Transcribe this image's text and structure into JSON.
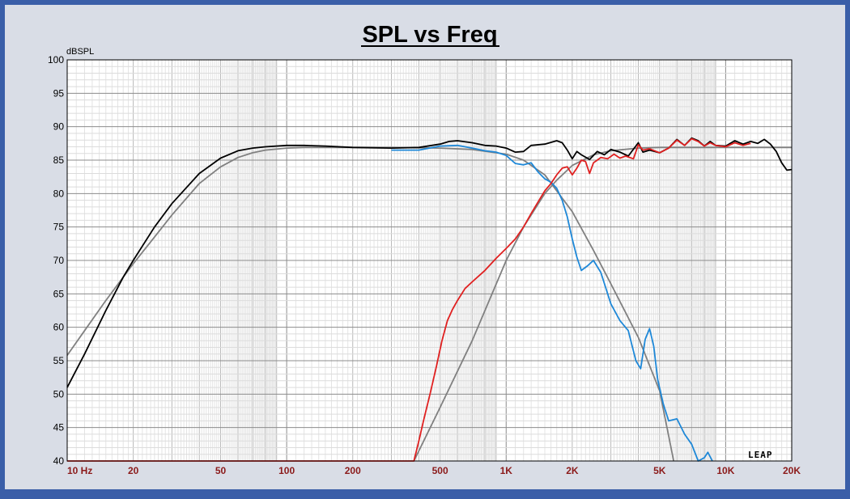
{
  "chart_data": {
    "type": "line",
    "title": "SPL vs Freq",
    "ylabel": "dBSPL",
    "xlabel": "",
    "x_scale": "log",
    "xlim": [
      10,
      20000
    ],
    "ylim": [
      40,
      100
    ],
    "grid": true,
    "x_tick_labels": [
      {
        "value": 10,
        "label": "10  Hz"
      },
      {
        "value": 20,
        "label": "20"
      },
      {
        "value": 50,
        "label": "50"
      },
      {
        "value": 100,
        "label": "100"
      },
      {
        "value": 200,
        "label": "200"
      },
      {
        "value": 500,
        "label": "500"
      },
      {
        "value": 1000,
        "label": "1K"
      },
      {
        "value": 2000,
        "label": "2K"
      },
      {
        "value": 5000,
        "label": "5K"
      },
      {
        "value": 10000,
        "label": "10K"
      },
      {
        "value": 20000,
        "label": "20K"
      }
    ],
    "y_ticks": [
      100,
      95,
      90,
      85,
      80,
      75,
      70,
      65,
      60,
      55,
      50,
      45,
      40
    ],
    "series": [
      {
        "color": "#808080",
        "x": [
          10,
          12,
          15,
          18,
          20,
          25,
          30,
          40,
          50,
          60,
          70,
          80,
          100,
          120,
          150,
          200,
          300,
          500,
          700,
          1000,
          1200,
          1500,
          2000,
          2500,
          3000,
          4000,
          5000,
          5800
        ],
        "y": [
          55.8,
          59.5,
          64,
          67.5,
          69.5,
          73.5,
          76.8,
          81.5,
          84,
          85.4,
          86.1,
          86.5,
          86.8,
          86.9,
          86.9,
          86.9,
          86.9,
          86.8,
          86.6,
          85.9,
          85,
          82.8,
          77.3,
          71.5,
          66.5,
          58.5,
          50.5,
          40
        ]
      },
      {
        "color": "#808080",
        "x": [
          380,
          500,
          700,
          1000,
          1200,
          1500,
          1700,
          2000,
          2500,
          3000,
          4000,
          5000,
          7000,
          10000,
          15000,
          20000
        ],
        "y": [
          40,
          48,
          58,
          70,
          75,
          80,
          82,
          84.2,
          85.8,
          86.4,
          86.8,
          86.9,
          86.9,
          86.9,
          86.9,
          86.9
        ]
      },
      {
        "color": "#000000",
        "x": [
          10,
          12,
          15,
          18,
          20,
          25,
          30,
          40,
          50,
          60,
          70,
          80,
          100,
          120,
          150,
          200,
          300,
          400,
          500,
          550,
          600,
          700,
          800,
          900,
          1000,
          1100,
          1200,
          1300,
          1500,
          1700,
          1800,
          1900,
          2000,
          2100,
          2200,
          2400,
          2600,
          2800,
          3000,
          3300,
          3600,
          4000,
          4200,
          4500,
          5000,
          5500,
          6000,
          6500,
          7000,
          7500,
          8000,
          8500,
          9000,
          10000,
          11000,
          12000,
          13000,
          14000,
          15000,
          16000,
          17000,
          18000,
          19000,
          20000
        ],
        "y": [
          51,
          56,
          62.5,
          67.5,
          70,
          75,
          78.5,
          83,
          85.3,
          86.4,
          86.8,
          87,
          87.2,
          87.2,
          87.1,
          86.9,
          86.8,
          86.9,
          87.4,
          87.8,
          87.9,
          87.6,
          87.2,
          87.1,
          86.8,
          86.2,
          86.3,
          87.2,
          87.4,
          87.9,
          87.6,
          86.5,
          85.2,
          86.3,
          85.8,
          85.1,
          86.3,
          85.8,
          86.6,
          86.2,
          85.6,
          87.6,
          86.2,
          86.5,
          86.1,
          86.8,
          88.1,
          87.2,
          88.3,
          87.9,
          87.1,
          87.8,
          87.2,
          87.1,
          87.9,
          87.4,
          87.8,
          87.5,
          88.1,
          87.4,
          86.3,
          84.6,
          83.5,
          83.6
        ]
      },
      {
        "color": "#1e88d8",
        "x": [
          300,
          400,
          500,
          600,
          700,
          800,
          900,
          1000,
          1100,
          1200,
          1300,
          1400,
          1500,
          1600,
          1700,
          1800,
          1900,
          2000,
          2100,
          2200,
          2350,
          2500,
          2700,
          3000,
          3300,
          3600,
          3900,
          4100,
          4300,
          4500,
          4700,
          4900,
          5200,
          5500,
          6000,
          6500,
          7000,
          7500,
          8000,
          8300,
          8700
        ],
        "y": [
          86.5,
          86.5,
          87.1,
          87.2,
          86.8,
          86.4,
          86.2,
          85.7,
          84.5,
          84.3,
          84.6,
          83.2,
          82.2,
          81.7,
          80.8,
          79,
          76.5,
          73.2,
          70.5,
          68.5,
          69.2,
          70,
          68.2,
          63.5,
          61,
          59.5,
          55,
          53.8,
          58.2,
          59.8,
          57.2,
          52.2,
          48.5,
          46,
          46.3,
          44,
          42.5,
          40,
          40.5,
          41.3,
          40
        ]
      },
      {
        "color": "#e02020",
        "x": [
          10,
          380,
          400,
          420,
          450,
          480,
          510,
          540,
          570,
          600,
          650,
          700,
          800,
          900,
          1000,
          1100,
          1200,
          1300,
          1400,
          1500,
          1600,
          1700,
          1800,
          1900,
          2000,
          2100,
          2200,
          2300,
          2400,
          2500,
          2600,
          2700,
          2900,
          3100,
          3300,
          3500,
          3800,
          4000,
          4200,
          4500,
          5000,
          5500,
          6000,
          6500,
          7000,
          7500,
          8000,
          8500,
          9000,
          10000,
          11000,
          12000,
          13000
        ],
        "y": [
          40,
          40,
          43,
          46,
          50,
          54,
          58,
          61,
          62.7,
          64,
          65.8,
          66.8,
          68.5,
          70.3,
          71.8,
          73.2,
          75,
          77,
          78.8,
          80.4,
          81.5,
          82.8,
          83.8,
          84,
          82.8,
          83.8,
          85,
          84.8,
          83,
          84.6,
          85,
          85.4,
          85.2,
          85.9,
          85.3,
          85.6,
          85.2,
          87.3,
          86.5,
          86.7,
          86.1,
          86.8,
          88,
          87.2,
          88.2,
          87.8,
          87.1,
          87.6,
          87.2,
          87,
          87.6,
          87.2,
          87.5
        ]
      }
    ]
  },
  "logo_text": "LEAP"
}
